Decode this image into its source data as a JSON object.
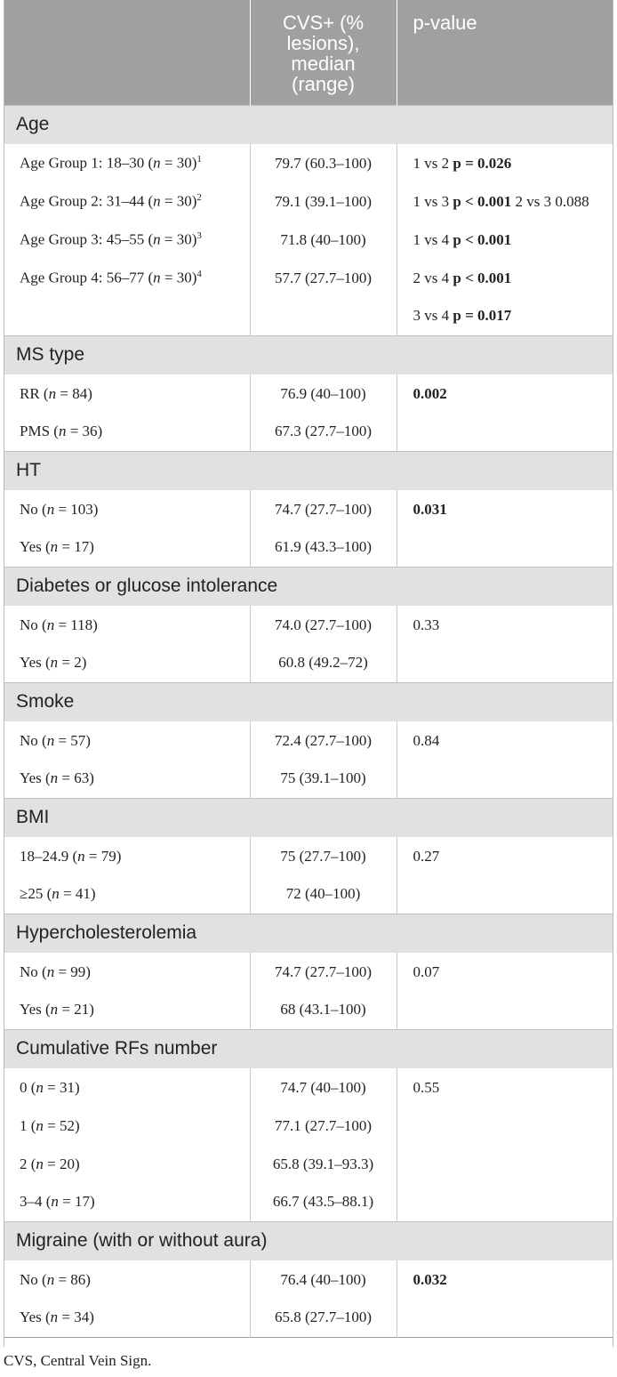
{
  "header": {
    "col1": "",
    "col2": "CVS+ (% lesions), median (range)",
    "col3": "p-value"
  },
  "groups": [
    {
      "title": "Age",
      "rows": [
        {
          "label": "Age Group 1: 18–30 (",
          "n": "30",
          "sup": "1",
          "value": "79.7 (60.3–100)",
          "p_parts": [
            {
              "t": "1 vs 2 ",
              "b": false
            },
            {
              "t": "p = 0.026",
              "b": true
            }
          ]
        },
        {
          "label": "Age Group 2: 31–44 (",
          "n": "30",
          "sup": "2",
          "value": "79.1 (39.1–100)",
          "p_parts": [
            {
              "t": "1 vs 3 ",
              "b": false
            },
            {
              "t": "p < 0.001",
              "b": true
            },
            {
              "t": " 2 vs 3 0.088",
              "b": false
            }
          ]
        },
        {
          "label": "Age Group 3: 45–55 (",
          "n": "30",
          "sup": "3",
          "value": "71.8 (40–100)",
          "p_parts": [
            {
              "t": "1 vs 4 ",
              "b": false
            },
            {
              "t": "p < 0.001",
              "b": true
            }
          ]
        },
        {
          "label": "Age Group 4: 56–77 (",
          "n": "30",
          "sup": "4",
          "value": "57.7 (27.7–100)",
          "p_parts": [
            {
              "t": "2 vs 4 ",
              "b": false
            },
            {
              "t": "p < 0.001",
              "b": true
            }
          ]
        },
        {
          "label": "",
          "n": "",
          "sup": "",
          "value": "",
          "p_parts": [
            {
              "t": "3 vs 4 ",
              "b": false
            },
            {
              "t": "p = 0.017",
              "b": true
            }
          ]
        }
      ]
    },
    {
      "title": "MS type",
      "rows": [
        {
          "label": "RR (",
          "n": "84",
          "sup": "",
          "value": "76.9 (40–100)",
          "p_parts": [
            {
              "t": "0.002",
              "b": true
            }
          ]
        },
        {
          "label": "PMS (",
          "n": "36",
          "sup": "",
          "value": "67.3 (27.7–100)",
          "p_parts": []
        }
      ]
    },
    {
      "title": "HT",
      "rows": [
        {
          "label": "No (",
          "n": "103",
          "sup": "",
          "value": "74.7 (27.7–100)",
          "p_parts": [
            {
              "t": "0.031",
              "b": true
            }
          ]
        },
        {
          "label": "Yes (",
          "n": "17",
          "sup": "",
          "value": "61.9 (43.3–100)",
          "p_parts": []
        }
      ]
    },
    {
      "title": "Diabetes or glucose intolerance",
      "rows": [
        {
          "label": "No (",
          "n": "118",
          "sup": "",
          "value": "74.0 (27.7–100)",
          "p_parts": [
            {
              "t": "0.33",
              "b": false
            }
          ]
        },
        {
          "label": "Yes (",
          "n": "2",
          "sup": "",
          "value": "60.8 (49.2–72)",
          "p_parts": []
        }
      ]
    },
    {
      "title": "Smoke",
      "rows": [
        {
          "label": "No (",
          "n": "57",
          "sup": "",
          "value": "72.4 (27.7–100)",
          "p_parts": [
            {
              "t": "0.84",
              "b": false
            }
          ]
        },
        {
          "label": "Yes (",
          "n": "63",
          "sup": "",
          "value": "75 (39.1–100)",
          "p_parts": []
        }
      ]
    },
    {
      "title": "BMI",
      "rows": [
        {
          "label": "18–24.9 (",
          "n": "79",
          "sup": "",
          "value": "75 (27.7–100)",
          "p_parts": [
            {
              "t": "0.27",
              "b": false
            }
          ]
        },
        {
          "label": "≥25 (",
          "n": "41",
          "sup": "",
          "value": "72 (40–100)",
          "p_parts": []
        }
      ]
    },
    {
      "title": "Hypercholesterolemia",
      "rows": [
        {
          "label": "No (",
          "n": "99",
          "sup": "",
          "value": "74.7 (27.7–100)",
          "p_parts": [
            {
              "t": "0.07",
              "b": false
            }
          ]
        },
        {
          "label": "Yes (",
          "n": "21",
          "sup": "",
          "value": "68 (43.1–100)",
          "p_parts": []
        }
      ]
    },
    {
      "title": "Cumulative RFs number",
      "rows": [
        {
          "label": "0 (",
          "n": "31",
          "sup": "",
          "value": "74.7 (40–100)",
          "p_parts": [
            {
              "t": "0.55",
              "b": false
            }
          ]
        },
        {
          "label": "1 (",
          "n": "52",
          "sup": "",
          "value": "77.1 (27.7–100)",
          "p_parts": []
        },
        {
          "label": "2 (",
          "n": "20",
          "sup": "",
          "value": "65.8 (39.1–93.3)",
          "p_parts": []
        },
        {
          "label": "3–4 (",
          "n": "17",
          "sup": "",
          "value": "66.7 (43.5–88.1)",
          "p_parts": []
        }
      ]
    },
    {
      "title": "Migraine (with or without aura)",
      "rows": [
        {
          "label": "No (",
          "n": "86",
          "sup": "",
          "value": "76.4 (40–100)",
          "p_parts": [
            {
              "t": "0.032",
              "b": true
            }
          ]
        },
        {
          "label": "Yes (",
          "n": "34",
          "sup": "",
          "value": "65.8 (27.7–100)",
          "p_parts": []
        }
      ]
    }
  ],
  "footnote": "CVS, Central Vein Sign."
}
